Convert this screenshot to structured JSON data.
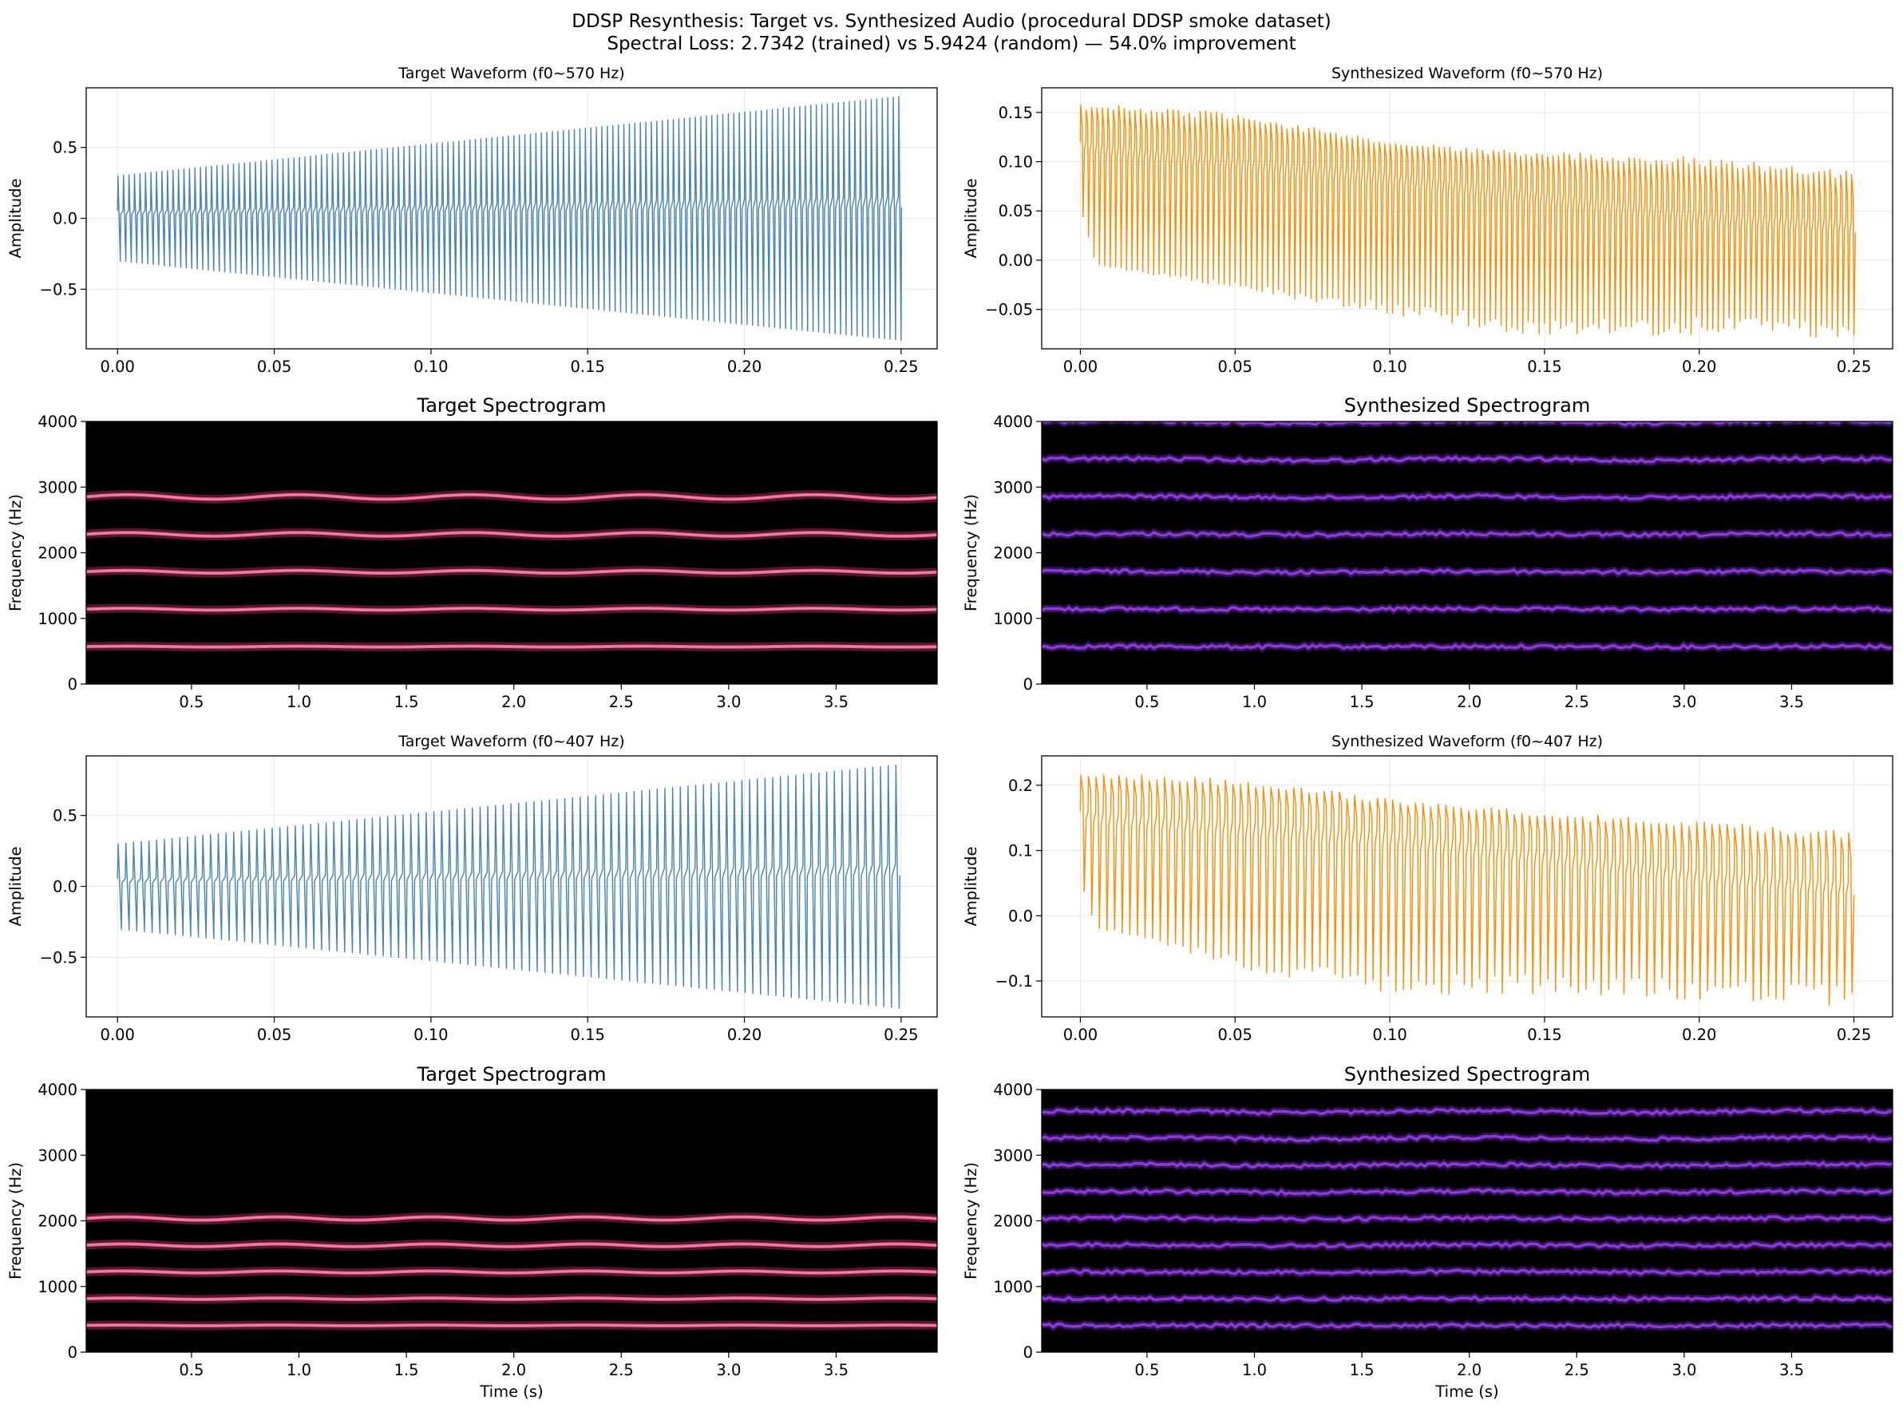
{
  "figure": {
    "title_line1": "DDSP Resynthesis: Target vs. Synthesized Audio (procedural DDSP smoke dataset)",
    "title_line2": "Spectral Loss: 2.7342 (trained) vs 5.9424 (random) — 54.0% improvement"
  },
  "colors": {
    "target_wave": "#4682b4",
    "synth_wave": "#ff8c00",
    "spec_background": "#000000",
    "target_harmonic": "#e8468c",
    "synth_harmonic": "#7a28c8",
    "grid": "#e6e6e6"
  },
  "chart_data": [
    {
      "id": "wave_t1",
      "type": "line",
      "title": "Target Waveform (f0~570 Hz)",
      "xlabel": "",
      "ylabel": "Amplitude",
      "xlim": [
        -0.01,
        0.2615
      ],
      "ylim": [
        -0.92,
        0.92
      ],
      "xticks": [
        0.0,
        0.05,
        0.1,
        0.15,
        0.2,
        0.25
      ],
      "xtick_labels": [
        "0.00",
        "0.05",
        "0.10",
        "0.15",
        "0.20",
        "0.25"
      ],
      "yticks": [
        -0.5,
        0.0,
        0.5
      ],
      "ytick_labels": [
        "−0.5",
        "0.0",
        "0.5"
      ],
      "grid": true,
      "color": "#4682b4",
      "f0": 570,
      "duration": 0.25,
      "envelope": [
        [
          0.0,
          0.3
        ],
        [
          0.25,
          0.86
        ]
      ],
      "min_envelope": [
        [
          0.0,
          -0.3
        ],
        [
          0.25,
          -0.86
        ]
      ]
    },
    {
      "id": "wave_s1",
      "type": "line",
      "title": "Synthesized Waveform (f0~570 Hz)",
      "xlabel": "",
      "ylabel": "Amplitude",
      "xlim": [
        -0.0125,
        0.2625
      ],
      "ylim": [
        -0.09,
        0.175
      ],
      "xticks": [
        0.0,
        0.05,
        0.1,
        0.15,
        0.2,
        0.25
      ],
      "xtick_labels": [
        "0.00",
        "0.05",
        "0.10",
        "0.15",
        "0.20",
        "0.25"
      ],
      "yticks": [
        -0.05,
        0.0,
        0.05,
        0.1,
        0.15
      ],
      "ytick_labels": [
        "−0.05",
        "0.00",
        "0.05",
        "0.10",
        "0.15"
      ],
      "grid": true,
      "color": "#ff8c00",
      "f0": 570,
      "duration": 0.25,
      "envelope": [
        [
          0.0,
          0.16
        ],
        [
          0.05,
          0.15
        ],
        [
          0.1,
          0.12
        ],
        [
          0.15,
          0.11
        ],
        [
          0.2,
          0.105
        ],
        [
          0.25,
          0.09
        ]
      ],
      "min_envelope": [
        [
          0.0,
          0.06
        ],
        [
          0.005,
          -0.005
        ],
        [
          0.05,
          -0.03
        ],
        [
          0.1,
          -0.055
        ],
        [
          0.15,
          -0.08
        ],
        [
          0.2,
          -0.075
        ],
        [
          0.25,
          -0.08
        ]
      ],
      "upper_band": [
        [
          0.0,
          0.12
        ],
        [
          0.1,
          0.09
        ],
        [
          0.2,
          0.05
        ],
        [
          0.25,
          0.04
        ]
      ]
    },
    {
      "id": "spec_t1",
      "type": "heatmap",
      "title": "Target Spectrogram",
      "xlabel": "",
      "ylabel": "Frequency (Hz)",
      "xlim": [
        0.01,
        3.97
      ],
      "ylim": [
        0,
        4000
      ],
      "xticks": [
        0.5,
        1.0,
        1.5,
        2.0,
        2.5,
        3.0,
        3.5
      ],
      "xtick_labels": [
        "0.5",
        "1.0",
        "1.5",
        "2.0",
        "2.5",
        "3.0",
        "3.5"
      ],
      "yticks": [
        0,
        1000,
        2000,
        3000,
        4000
      ],
      "ytick_labels": [
        "0",
        "1000",
        "2000",
        "3000",
        "4000"
      ],
      "harmonics_hz": [
        570,
        1140,
        1710,
        2280,
        2850
      ],
      "harmonic_color": "#e8468c",
      "vibrato_relative": 0.012,
      "vibrato_period_s": 0.8
    },
    {
      "id": "spec_s1",
      "type": "heatmap",
      "title": "Synthesized Spectrogram",
      "xlabel": "",
      "ylabel": "Frequency (Hz)",
      "xlim": [
        0.01,
        3.97
      ],
      "ylim": [
        0,
        4000
      ],
      "xticks": [
        0.5,
        1.0,
        1.5,
        2.0,
        2.5,
        3.0,
        3.5
      ],
      "xtick_labels": [
        "0.5",
        "1.0",
        "1.5",
        "2.0",
        "2.5",
        "3.0",
        "3.5"
      ],
      "yticks": [
        0,
        1000,
        2000,
        3000,
        4000
      ],
      "ytick_labels": [
        "0",
        "1000",
        "2000",
        "3000",
        "4000"
      ],
      "harmonics_hz": [
        570,
        1140,
        1710,
        2280,
        2850,
        3420,
        3990
      ],
      "harmonic_color": "#7a28c8",
      "vibrato_relative": 0.004,
      "vibrato_period_s": 1.6
    },
    {
      "id": "wave_t2",
      "type": "line",
      "title": "Target Waveform (f0~407 Hz)",
      "xlabel": "",
      "ylabel": "Amplitude",
      "xlim": [
        -0.01,
        0.2615
      ],
      "ylim": [
        -0.92,
        0.92
      ],
      "xticks": [
        0.0,
        0.05,
        0.1,
        0.15,
        0.2,
        0.25
      ],
      "xtick_labels": [
        "0.00",
        "0.05",
        "0.10",
        "0.15",
        "0.20",
        "0.25"
      ],
      "yticks": [
        -0.5,
        0.0,
        0.5
      ],
      "ytick_labels": [
        "−0.5",
        "0.0",
        "0.5"
      ],
      "grid": true,
      "color": "#4682b4",
      "f0": 407,
      "duration": 0.25,
      "envelope": [
        [
          0.0,
          0.3
        ],
        [
          0.25,
          0.86
        ]
      ],
      "min_envelope": [
        [
          0.0,
          -0.3
        ],
        [
          0.25,
          -0.86
        ]
      ]
    },
    {
      "id": "wave_s2",
      "type": "line",
      "title": "Synthesized Waveform (f0~407 Hz)",
      "xlabel": "",
      "ylabel": "Amplitude",
      "xlim": [
        -0.0125,
        0.2625
      ],
      "ylim": [
        -0.155,
        0.245
      ],
      "xticks": [
        0.0,
        0.05,
        0.1,
        0.15,
        0.2,
        0.25
      ],
      "xtick_labels": [
        "0.00",
        "0.05",
        "0.10",
        "0.15",
        "0.20",
        "0.25"
      ],
      "yticks": [
        -0.1,
        0.0,
        0.1,
        0.2
      ],
      "ytick_labels": [
        "−0.1",
        "0.0",
        "0.1",
        "0.2"
      ],
      "grid": true,
      "color": "#ff8c00",
      "f0": 407,
      "duration": 0.25,
      "envelope": [
        [
          0.0,
          0.22
        ],
        [
          0.05,
          0.21
        ],
        [
          0.1,
          0.18
        ],
        [
          0.15,
          0.16
        ],
        [
          0.2,
          0.145
        ],
        [
          0.25,
          0.13
        ]
      ],
      "min_envelope": [
        [
          0.0,
          0.06
        ],
        [
          0.005,
          -0.02
        ],
        [
          0.05,
          -0.08
        ],
        [
          0.1,
          -0.12
        ],
        [
          0.15,
          -0.12
        ],
        [
          0.2,
          -0.13
        ],
        [
          0.25,
          -0.14
        ]
      ],
      "upper_band": [
        [
          0.0,
          0.16
        ],
        [
          0.1,
          0.13
        ],
        [
          0.2,
          0.07
        ],
        [
          0.25,
          0.05
        ]
      ]
    },
    {
      "id": "spec_t2",
      "type": "heatmap",
      "title": "Target Spectrogram",
      "xlabel": "Time (s)",
      "ylabel": "Frequency (Hz)",
      "xlim": [
        0.01,
        3.97
      ],
      "ylim": [
        0,
        4000
      ],
      "xticks": [
        0.5,
        1.0,
        1.5,
        2.0,
        2.5,
        3.0,
        3.5
      ],
      "xtick_labels": [
        "0.5",
        "1.0",
        "1.5",
        "2.0",
        "2.5",
        "3.0",
        "3.5"
      ],
      "yticks": [
        0,
        1000,
        2000,
        3000,
        4000
      ],
      "ytick_labels": [
        "0",
        "1000",
        "2000",
        "3000",
        "4000"
      ],
      "harmonics_hz": [
        407,
        814,
        1221,
        1628,
        2035
      ],
      "harmonic_color": "#e8468c",
      "vibrato_relative": 0.012,
      "vibrato_period_s": 0.72
    },
    {
      "id": "spec_s2",
      "type": "heatmap",
      "title": "Synthesized Spectrogram",
      "xlabel": "Time (s)",
      "ylabel": "Frequency (Hz)",
      "xlim": [
        0.01,
        3.97
      ],
      "ylim": [
        0,
        4000
      ],
      "xticks": [
        0.5,
        1.0,
        1.5,
        2.0,
        2.5,
        3.0,
        3.5
      ],
      "xtick_labels": [
        "0.5",
        "1.0",
        "1.5",
        "2.0",
        "2.5",
        "3.0",
        "3.5"
      ],
      "yticks": [
        0,
        1000,
        2000,
        3000,
        4000
      ],
      "ytick_labels": [
        "0",
        "1000",
        "2000",
        "3000",
        "4000"
      ],
      "harmonics_hz": [
        407,
        814,
        1221,
        1628,
        2035,
        2442,
        2849,
        3256,
        3663
      ],
      "harmonic_color": "#7a28c8",
      "vibrato_relative": 0.004,
      "vibrato_period_s": 1.6
    }
  ]
}
